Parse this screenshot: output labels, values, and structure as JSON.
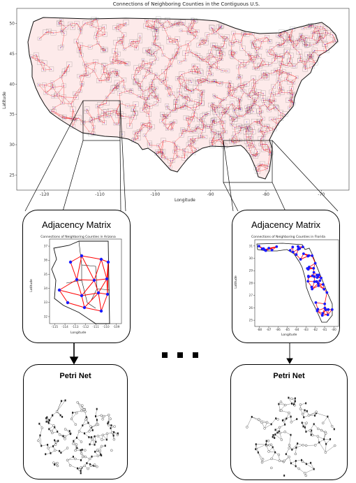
{
  "main_map": {
    "title": "Connections of Neighboring Counties in the Contiguous U.S.",
    "xlabel": "Longitude",
    "ylabel": "Latitude",
    "xticks": [
      "-120",
      "-110",
      "-100",
      "-90",
      "-80",
      "-70"
    ],
    "yticks": [
      "50",
      "45",
      "40",
      "35",
      "30",
      "25"
    ],
    "colors": {
      "edges": "#ff0000",
      "nodes": "#1a1aff",
      "borders": "#222222"
    }
  },
  "left_column": {
    "adjacency_card": {
      "title": "Adjacency Matrix",
      "plot_title": "Connections of Neighboring Counties in Arizona",
      "xlabel": "Longitude",
      "ylabel": "Latitude",
      "xticks": [
        "-115",
        "-114",
        "-113",
        "-112",
        "-111",
        "-110",
        "-109"
      ],
      "yticks": [
        "37",
        "36",
        "35",
        "34",
        "33",
        "32"
      ]
    },
    "petri_card": {
      "title": "Petri Net"
    }
  },
  "right_column": {
    "adjacency_card": {
      "title": "Adjacency Matrix",
      "plot_title": "Connections of Neighboring Counties in Florida",
      "xlabel": "Longitude",
      "ylabel": "Latitude",
      "xticks": [
        "-88",
        "-87",
        "-86",
        "-85",
        "-84",
        "-83",
        "-82",
        "-81",
        "-80"
      ],
      "yticks": [
        "31",
        "30",
        "29",
        "28",
        "27",
        "26",
        "25"
      ]
    },
    "petri_card": {
      "title": "Petri Net"
    }
  },
  "ellipsis": "..."
}
